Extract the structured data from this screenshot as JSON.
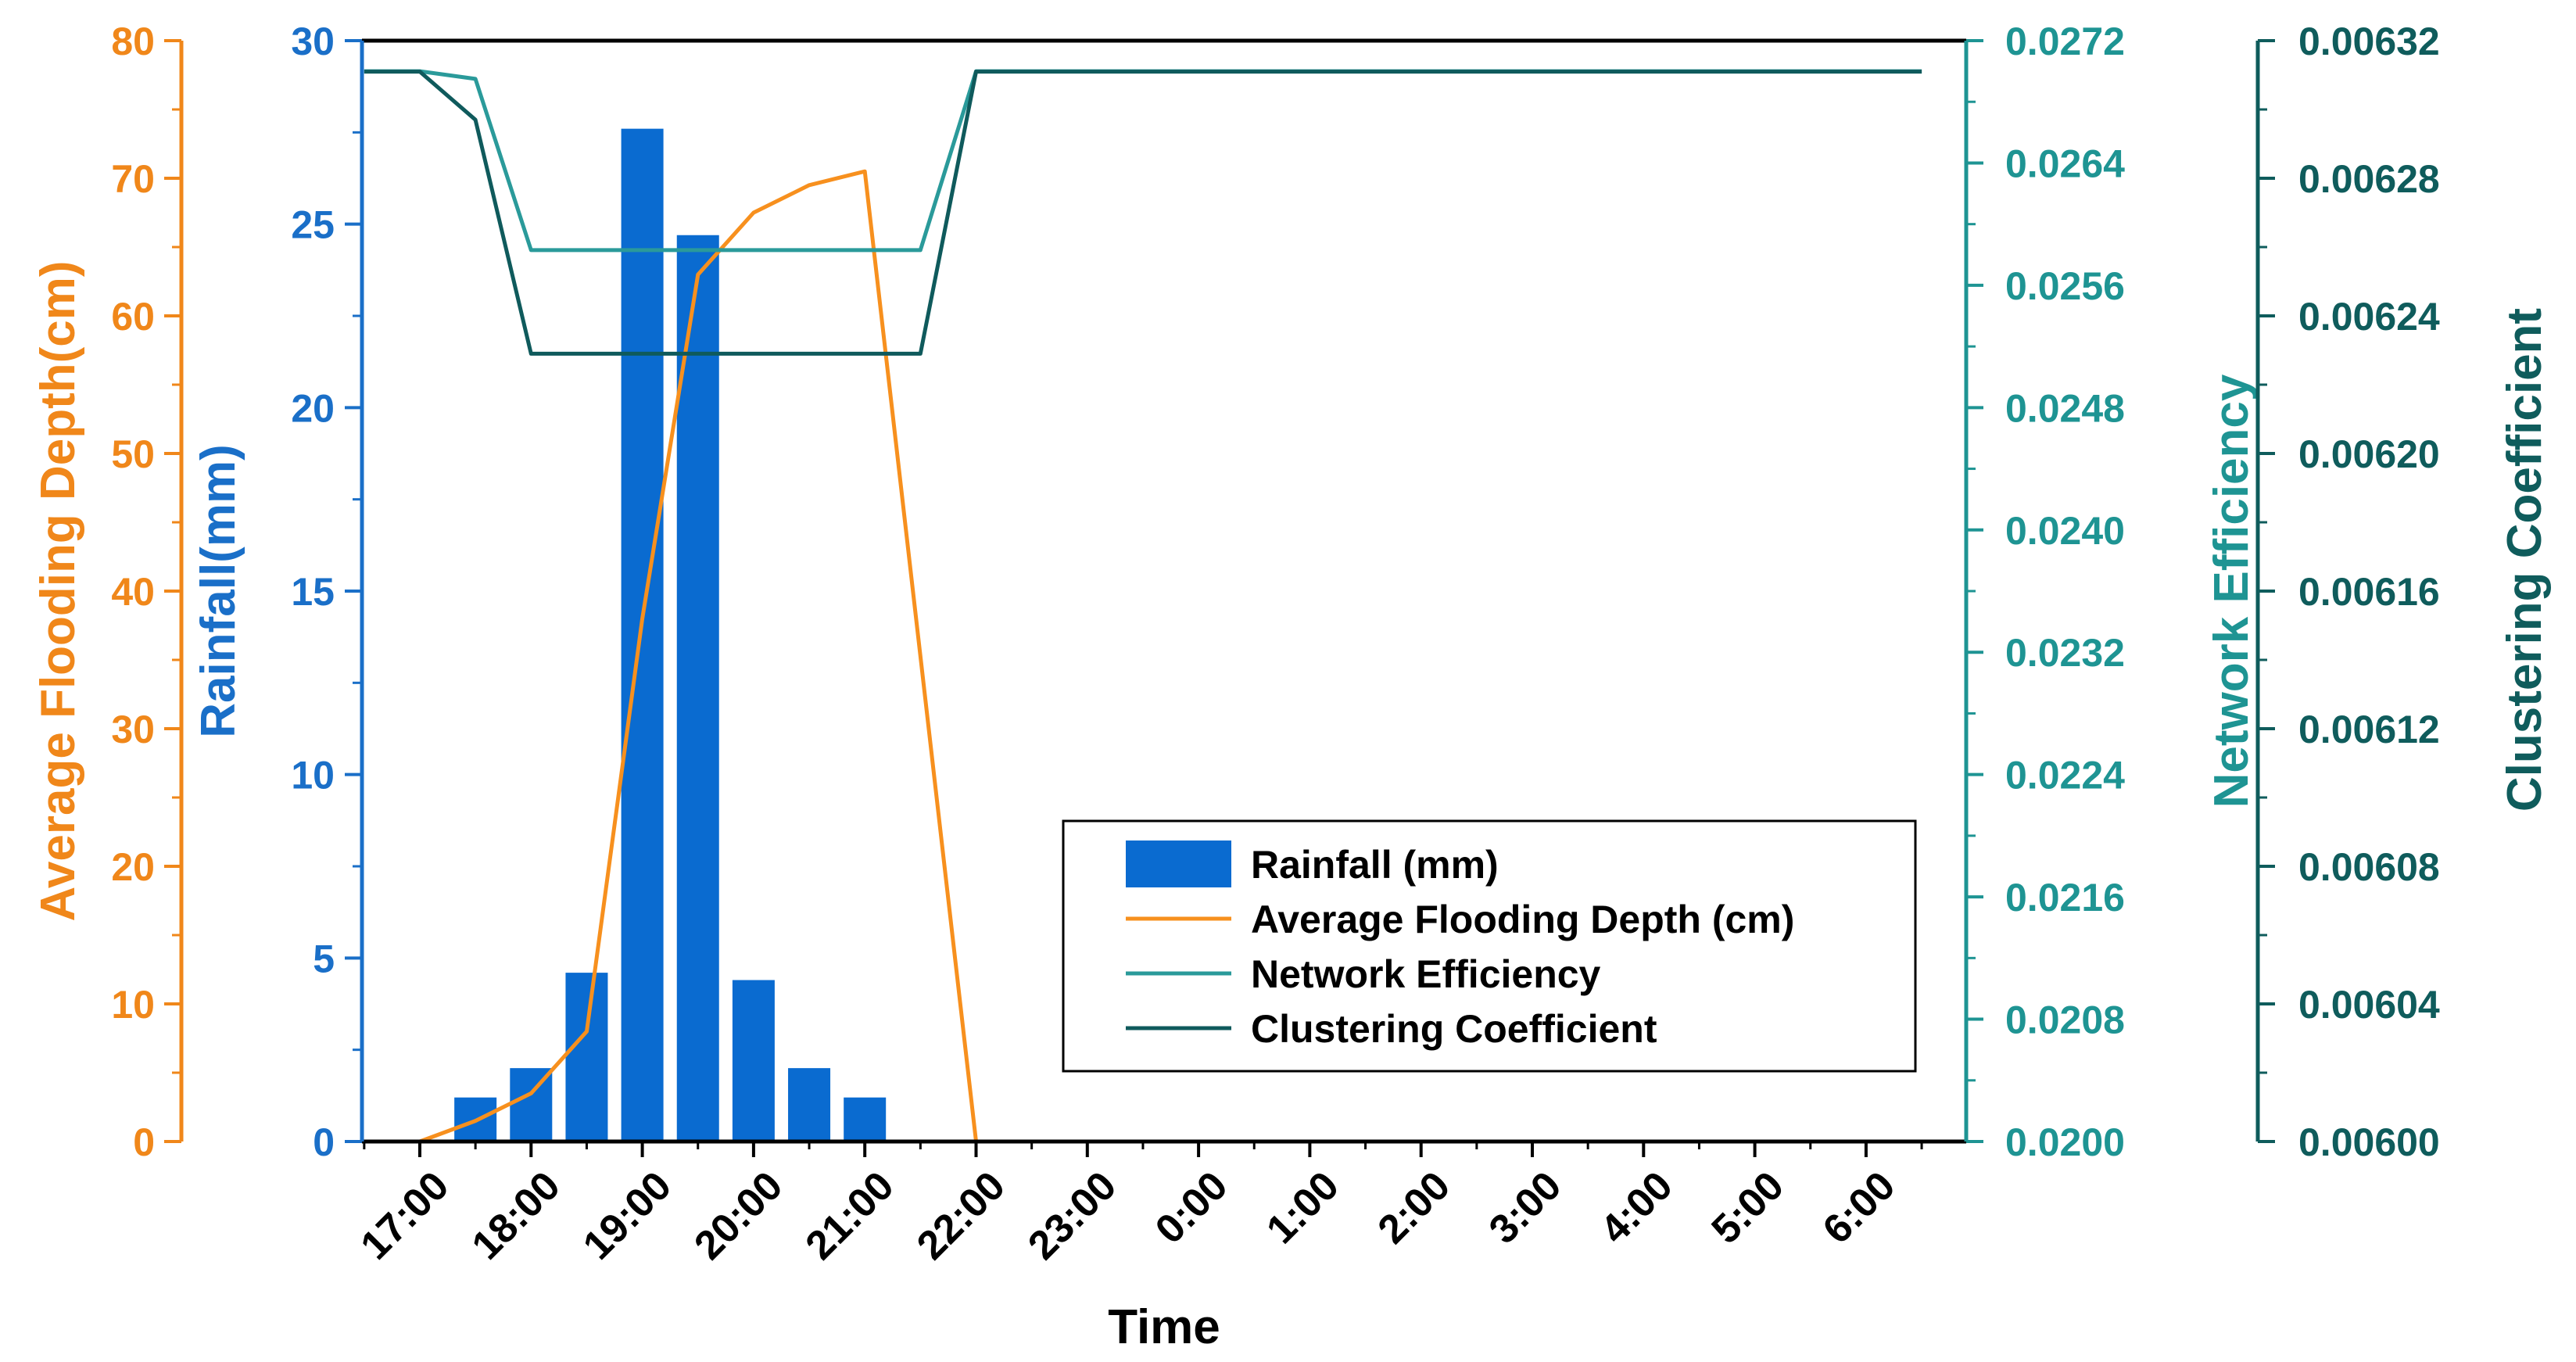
{
  "chart_data": {
    "type": "bar+line",
    "xlabel": "Time",
    "categories": [
      "17:00",
      "18:00",
      "19:00",
      "20:00",
      "21:00",
      "22:00",
      "23:00",
      "0:00",
      "1:00",
      "2:00",
      "3:00",
      "4:00",
      "5:00",
      "6:00"
    ],
    "axes": {
      "flood": {
        "label": "Average Flooding Depth(cm)",
        "ylim": [
          0,
          80
        ],
        "ticks": [
          "0",
          "10",
          "20",
          "30",
          "40",
          "50",
          "60",
          "70",
          "80"
        ],
        "color": "#f0871a"
      },
      "rain": {
        "label": "Rainfall(mm)",
        "ylim": [
          0,
          30
        ],
        "ticks": [
          "0",
          "5",
          "10",
          "15",
          "20",
          "25",
          "30"
        ],
        "color": "#1a6fc8"
      },
      "eff": {
        "label": "Network Efficiency",
        "ylim": [
          0.02,
          0.0272
        ],
        "ticks": [
          "0.0200",
          "0.0208",
          "0.0216",
          "0.0224",
          "0.0232",
          "0.0240",
          "0.0248",
          "0.0256",
          "0.0264",
          "0.0272"
        ],
        "color": "#1e9493"
      },
      "clus": {
        "label": "Clustering Coefficient",
        "ylim": [
          0.006,
          0.00632
        ],
        "ticks": [
          "0.00600",
          "0.00604",
          "0.00608",
          "0.00612",
          "0.00616",
          "0.00620",
          "0.00624",
          "0.00628",
          "0.00632"
        ],
        "color": "#0f5c5c"
      }
    },
    "series": [
      {
        "name": "Rainfall (mm)",
        "kind": "bar",
        "axis": "rain",
        "color": "#0a6bd0",
        "x": [
          17.5,
          18,
          18.5,
          19,
          19.5,
          20,
          20.5,
          21
        ],
        "values": [
          1.2,
          2,
          4.6,
          27.6,
          24.7,
          4.4,
          2,
          1.2
        ]
      },
      {
        "name": "Average Flooding Depth (cm)",
        "kind": "line",
        "axis": "flood",
        "color": "#f7901e",
        "x": [
          17,
          17.5,
          18,
          18.5,
          19,
          19.5,
          20,
          20.5,
          21,
          22
        ],
        "values": [
          0,
          1.5,
          3.5,
          8,
          38,
          63,
          67.5,
          69.5,
          70.5,
          0
        ]
      },
      {
        "name": "Network Efficiency",
        "kind": "line",
        "axis": "eff",
        "color": "#2a9a9a",
        "x": [
          16.5,
          17,
          17.5,
          18,
          18.5,
          19,
          19.5,
          20,
          20.5,
          21,
          21.5,
          22,
          30.5
        ],
        "values": [
          0.027,
          0.027,
          0.02695,
          0.02583,
          0.02583,
          0.02583,
          0.02583,
          0.02583,
          0.02583,
          0.02583,
          0.02583,
          0.027,
          0.027
        ]
      },
      {
        "name": "Clustering Coefficient",
        "kind": "line",
        "axis": "clus",
        "color": "#0f5a5c",
        "x": [
          16.5,
          17,
          17.5,
          18,
          18.5,
          19,
          19.5,
          20,
          20.5,
          21,
          21.5,
          22,
          30.5
        ],
        "values": [
          0.006311,
          0.006311,
          0.006297,
          0.006229,
          0.006229,
          0.006229,
          0.006229,
          0.006229,
          0.006229,
          0.006229,
          0.006229,
          0.006311,
          0.006311
        ]
      }
    ],
    "legend": {
      "position": "lower-right",
      "entries": [
        "Rainfall (mm)",
        "Average Flooding Depth (cm)",
        "Network Efficiency",
        "Clustering Coefficient"
      ]
    }
  }
}
